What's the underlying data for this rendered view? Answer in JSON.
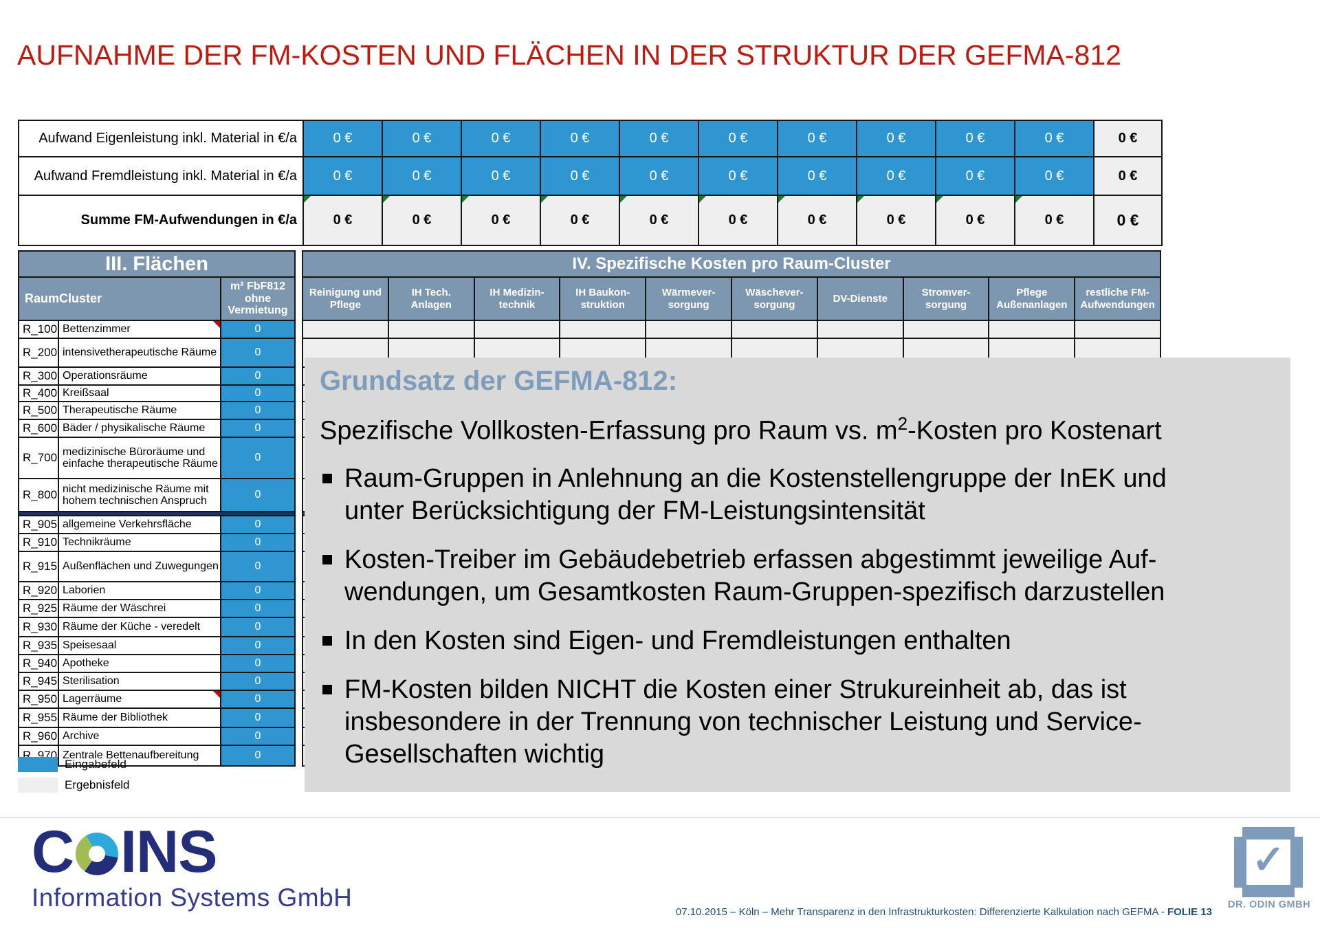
{
  "title": "AUFNAHME DER FM-KOSTEN UND FLÄCHEN IN DER STRUKTUR DER GEFMA-812",
  "colors": {
    "title_red": "#C01A10",
    "input_blue": "#3096D2",
    "header_blue": "#7D97B0",
    "result_gray": "#EFEFEF",
    "overlay_gray": "#D9D9D9",
    "overlay_heading_blue": "#7E9DBB",
    "separator_dark_blue": "#17365D",
    "coins_navy": "#232D7A",
    "odin_blue": "#7E9BBC",
    "footer_text_blue": "#1F4E79"
  },
  "top_table": {
    "rows": [
      {
        "label": "Aufwand Eigenleistung inkl. Material in €/a",
        "type": "input",
        "values": [
          "0 €",
          "0 €",
          "0 €",
          "0 €",
          "0 €",
          "0 €",
          "0 €",
          "0 €",
          "0 €",
          "0 €"
        ],
        "total": "0 €"
      },
      {
        "label": "Aufwand Fremdleistung inkl. Material in €/a",
        "type": "input",
        "values": [
          "0 €",
          "0 €",
          "0 €",
          "0 €",
          "0 €",
          "0 €",
          "0 €",
          "0 €",
          "0 €",
          "0 €"
        ],
        "total": "0 €"
      },
      {
        "label": "Summe FM-Aufwendungen in €/a",
        "type": "result",
        "values": [
          "0 €",
          "0 €",
          "0 €",
          "0 €",
          "0 €",
          "0 €",
          "0 €",
          "0 €",
          "0 €",
          "0 €"
        ],
        "total": "0 €"
      }
    ]
  },
  "flaechen": {
    "title": "III. Flächen",
    "raumcluster_header": "RaumCluster",
    "area_header": "m² FbF812\nohne\nVermietung",
    "rows": [
      {
        "code": "R_100",
        "name": "Bettenzimmer",
        "value": "0",
        "marker": true
      },
      {
        "code": "R_200",
        "name": "intensivetherapeutische Räume",
        "value": "0"
      },
      {
        "code": "R_300",
        "name": "Operationsräume",
        "value": "0"
      },
      {
        "code": "R_400",
        "name": "Kreißsaal",
        "value": "0"
      },
      {
        "code": "R_500",
        "name": "Therapeutische Räume",
        "value": "0"
      },
      {
        "code": "R_600",
        "name": "Bäder / physikalische Räume",
        "value": "0"
      },
      {
        "code": "R_700",
        "name": "medizinische Büroräume und einfache therapeutische Räume",
        "value": "0"
      },
      {
        "code": "R_800",
        "name": "nicht medizinische Räume mit hohem technischen Anspruch",
        "value": "0"
      },
      {
        "code": "R_905",
        "name": "allgemeine Verkehrsfläche",
        "value": "0"
      },
      {
        "code": "R_910",
        "name": "Technikräume",
        "value": "0"
      },
      {
        "code": "R_915",
        "name": "Außenflächen und Zuwegungen",
        "value": "0"
      },
      {
        "code": "R_920",
        "name": "Laborien",
        "value": "0"
      },
      {
        "code": "R_925",
        "name": "Räume der Wäschrei",
        "value": "0"
      },
      {
        "code": "R_930",
        "name": "Räume der Küche -  veredelt",
        "value": "0"
      },
      {
        "code": "R_935",
        "name": "Speisesaal",
        "value": "0"
      },
      {
        "code": "R_940",
        "name": "Apotheke",
        "value": "0"
      },
      {
        "code": "R_945",
        "name": "Sterilisation",
        "value": "0"
      },
      {
        "code": "R_950",
        "name": "Lagerräume",
        "value": "0",
        "marker": true
      },
      {
        "code": "R_955",
        "name": "Räume der Bibliothek",
        "value": "0"
      },
      {
        "code": "R_960",
        "name": "Archive",
        "value": "0"
      },
      {
        "code": "R_970",
        "name": "Zentrale Bettenaufbereitung",
        "value": "0"
      }
    ]
  },
  "kosten": {
    "title": "IV. Spezifische Kosten pro Raum-Cluster",
    "columns": [
      "Reinigung und\nPflege",
      "IH Tech.\nAnlagen",
      "IH Medizin-\ntechnik",
      "IH Baukon-\nstruktion",
      "Wärmever-\nsorgung",
      "Wäschever-\nsorgung",
      "DV-Dienste",
      "Stromver-\nsorgung",
      "Pflege\nAußenanlagen",
      "restliche FM-\nAufwendungen"
    ]
  },
  "legend": {
    "input": "Eingabefeld",
    "result": "Ergebnisfeld"
  },
  "overlay": {
    "heading": "Grundsatz der GEFMA-812:",
    "intro_pre": "Spezifische Vollkosten-Erfassung pro Raum vs. m",
    "intro_sup": "2",
    "intro_post": "-Kosten pro Kostenart",
    "bullets": [
      "Raum-Gruppen in Anlehnung an die Kostenstellengruppe der InEK und\nunter Berücksichtigung der FM-Leistungsintensität",
      "Kosten-Treiber im Gebäudebetrieb erfassen abgestimmt jeweilige Auf-\nwendungen, um Gesamtkosten Raum-Gruppen-spezifisch darzustellen",
      "In den Kosten sind Eigen- und Fremdleistungen enthalten",
      "FM-Kosten bilden NICHT die Kosten einer Strukureinheit ab, das ist\ninsbesondere in der Trennung von technischer Leistung und Service-\nGesellschaften wichtig"
    ]
  },
  "footer": {
    "coins_c": "C",
    "coins_rest": "INS",
    "coins_subtitle": "Information Systems GmbH",
    "note": "07.10.2015 – Köln – Mehr Transparenz in den Infrastrukturkosten: Differenzierte Kalkulation nach GEFMA - ",
    "note_bold": "FOLIE 13",
    "odin": "DR. ODIN GMBH"
  }
}
